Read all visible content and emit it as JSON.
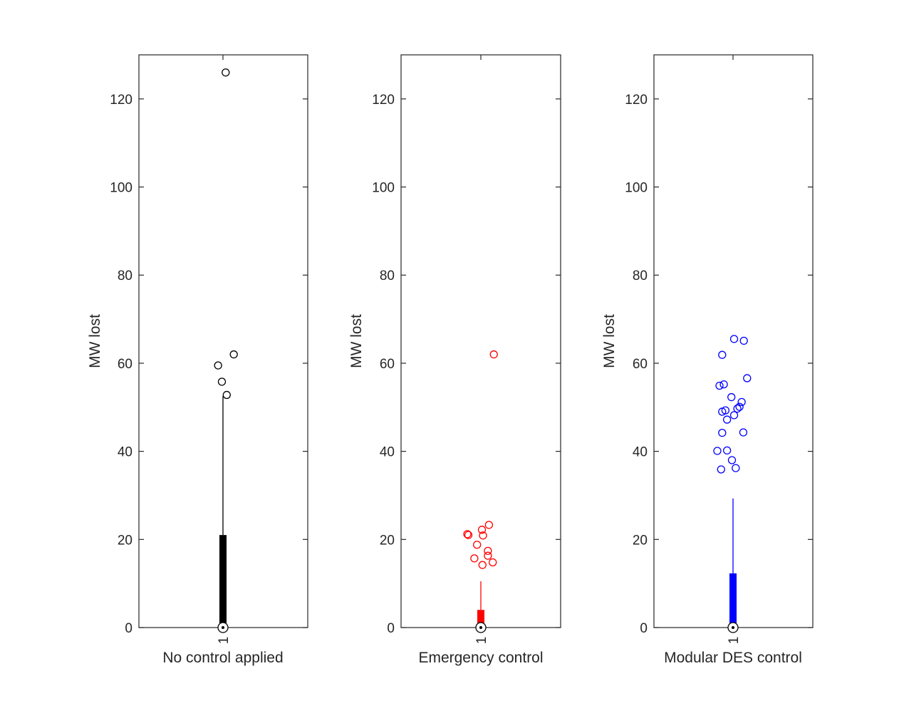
{
  "chart_data": [
    {
      "type": "box",
      "title": "",
      "xlabel": "No control applied",
      "ylabel": "MW lost",
      "categories": [
        "1"
      ],
      "ylim": [
        0,
        130
      ],
      "yticks": [
        0,
        20,
        40,
        60,
        80,
        100,
        120
      ],
      "grid": false,
      "color": "#000000",
      "box": {
        "q1": 0,
        "median": 0,
        "q3": 21,
        "whisker_low": 0,
        "whisker_high": 52.5
      },
      "outliers": [
        126,
        62,
        59.5,
        55.8,
        52.8
      ],
      "outlier_jitter": [
        0.05,
        0.2,
        -0.09,
        -0.02,
        0.07
      ]
    },
    {
      "type": "box",
      "title": "",
      "xlabel": "Emergency control",
      "ylabel": "MW lost",
      "categories": [
        "1"
      ],
      "ylim": [
        0,
        130
      ],
      "yticks": [
        0,
        20,
        40,
        60,
        80,
        100,
        120
      ],
      "grid": false,
      "color": "#ff0000",
      "box": {
        "q1": 0,
        "median": 0,
        "q3": 4,
        "whisker_low": 0,
        "whisker_high": 10.5
      },
      "outliers": [
        62,
        23.3,
        22.2,
        21.2,
        21.0,
        20.9,
        18.8,
        17.4,
        16.3,
        15.7,
        14.8,
        14.2
      ],
      "outlier_jitter": [
        0.24,
        0.15,
        0.02,
        -0.25,
        -0.23,
        0.04,
        -0.07,
        0.13,
        0.13,
        -0.12,
        0.22,
        0.03
      ]
    },
    {
      "type": "box",
      "title": "",
      "xlabel": "Modular DES control",
      "ylabel": "MW lost",
      "categories": [
        "1"
      ],
      "ylim": [
        0,
        130
      ],
      "yticks": [
        0,
        20,
        40,
        60,
        80,
        100,
        120
      ],
      "grid": false,
      "color": "#0000ff",
      "box": {
        "q1": 0,
        "median": 0,
        "q3": 12.3,
        "whisker_low": 0,
        "whisker_high": 29.3
      },
      "outliers": [
        65.5,
        65.1,
        61.9,
        56.6,
        55.2,
        54.9,
        52.3,
        51.2,
        50.1,
        49.7,
        49.3,
        49.0,
        48.2,
        47.2,
        44.3,
        44.2,
        40.2,
        40.1,
        38.0,
        36.2,
        35.9
      ],
      "outlier_jitter": [
        0.02,
        0.2,
        -0.2,
        0.26,
        -0.17,
        -0.25,
        -0.03,
        0.16,
        0.12,
        0.08,
        -0.14,
        -0.2,
        0.02,
        -0.11,
        0.19,
        -0.2,
        -0.11,
        -0.29,
        -0.02,
        0.05,
        -0.22
      ]
    }
  ]
}
